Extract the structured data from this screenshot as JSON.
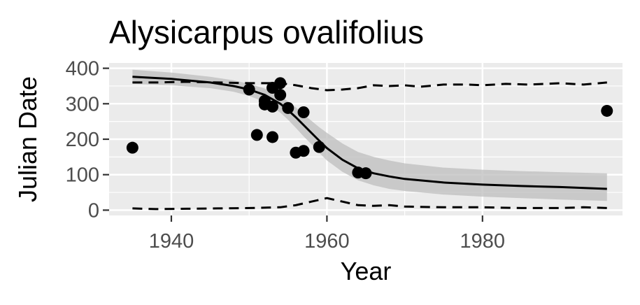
{
  "chart_data": {
    "type": "scatter",
    "title": "Alysicarpus ovalifolius",
    "xlabel": "Year",
    "ylabel": "Julian Date",
    "xlim": [
      1932,
      1998
    ],
    "ylim": [
      -15,
      415
    ],
    "x_ticks": [
      1940,
      1960,
      1980
    ],
    "y_ticks": [
      0,
      100,
      200,
      300,
      400
    ],
    "grid": true,
    "legend": "none",
    "colors": {
      "panel": "#ebebeb",
      "grid": "#ffffff",
      "points": "#000000",
      "ribbon": "#bebebe",
      "line": "#000000",
      "tick_text": "#4d4d4d"
    },
    "points": [
      {
        "x": 1935,
        "y": 176
      },
      {
        "x": 1950,
        "y": 340
      },
      {
        "x": 1951,
        "y": 212
      },
      {
        "x": 1952,
        "y": 308
      },
      {
        "x": 1952,
        "y": 298
      },
      {
        "x": 1953,
        "y": 345
      },
      {
        "x": 1953,
        "y": 292
      },
      {
        "x": 1953,
        "y": 206
      },
      {
        "x": 1954,
        "y": 358
      },
      {
        "x": 1954,
        "y": 325
      },
      {
        "x": 1955,
        "y": 288
      },
      {
        "x": 1956,
        "y": 162
      },
      {
        "x": 1957,
        "y": 276
      },
      {
        "x": 1957,
        "y": 167
      },
      {
        "x": 1959,
        "y": 178
      },
      {
        "x": 1964,
        "y": 106
      },
      {
        "x": 1965,
        "y": 104
      },
      {
        "x": 1996,
        "y": 280
      }
    ],
    "fit_line": {
      "x": [
        1935,
        1940,
        1945,
        1948,
        1950,
        1952,
        1954,
        1955,
        1956,
        1957,
        1958,
        1959,
        1960,
        1962,
        1964,
        1966,
        1968,
        1970,
        1975,
        1980,
        1985,
        1990,
        1996
      ],
      "y": [
        376,
        370,
        360,
        350,
        340,
        325,
        300,
        282,
        262,
        240,
        218,
        196,
        175,
        142,
        118,
        104,
        95,
        88,
        78,
        72,
        68,
        65,
        60
      ]
    },
    "ribbon": {
      "x": [
        1935,
        1940,
        1945,
        1948,
        1950,
        1952,
        1954,
        1955,
        1956,
        1957,
        1958,
        1959,
        1960,
        1962,
        1964,
        1966,
        1968,
        1970,
        1975,
        1980,
        1985,
        1990,
        1996
      ],
      "upper": [
        396,
        388,
        376,
        366,
        356,
        343,
        322,
        306,
        290,
        270,
        252,
        234,
        218,
        188,
        164,
        150,
        140,
        132,
        120,
        114,
        110,
        107,
        104
      ],
      "lower": [
        356,
        352,
        344,
        334,
        322,
        305,
        275,
        255,
        232,
        208,
        186,
        162,
        140,
        108,
        84,
        70,
        60,
        54,
        44,
        38,
        34,
        30,
        26
      ]
    },
    "upper_dashed": {
      "x": [
        1935,
        1938,
        1942,
        1946,
        1950,
        1954,
        1956,
        1958,
        1960,
        1962,
        1964,
        1966,
        1968,
        1970,
        1972,
        1975,
        1978,
        1980,
        1983,
        1986,
        1990,
        1993,
        1996
      ],
      "y": [
        360,
        360,
        362,
        360,
        358,
        358,
        352,
        344,
        338,
        340,
        344,
        352,
        350,
        352,
        348,
        354,
        354,
        352,
        356,
        354,
        358,
        354,
        360
      ]
    },
    "lower_dashed": {
      "x": [
        1935,
        1938,
        1942,
        1946,
        1950,
        1954,
        1956,
        1958,
        1960,
        1962,
        1964,
        1966,
        1968,
        1970,
        1975,
        1980,
        1985,
        1990,
        1993,
        1996
      ],
      "y": [
        5,
        3,
        4,
        5,
        6,
        8,
        14,
        24,
        34,
        24,
        14,
        12,
        14,
        10,
        8,
        8,
        6,
        6,
        8,
        6
      ]
    }
  }
}
